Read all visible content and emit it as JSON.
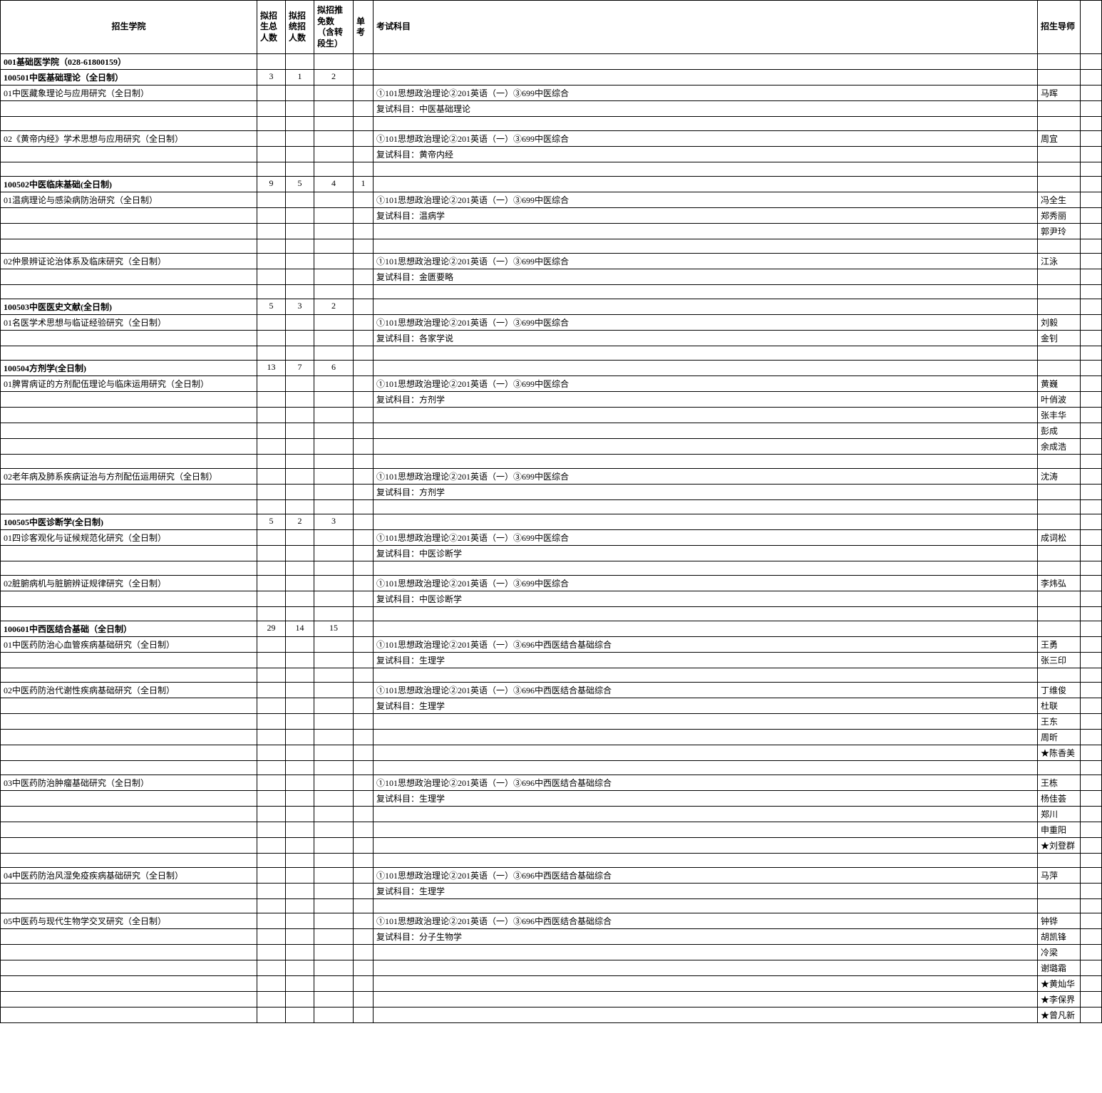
{
  "headers": {
    "school": "招生学院",
    "total": "拟招生总人数",
    "tongzhao": "拟招统招人数",
    "tuimian": "拟招推免数（含转段生）",
    "dankao": "单考",
    "subject": "考试科目",
    "teacher": "招生导师"
  },
  "rows": [
    {
      "c0": "001基础医学院（028-61800159）",
      "bold": true
    },
    {
      "c0": "100501中医基础理论（全日制）",
      "c1": "3",
      "c2": "1",
      "c3": "2",
      "bold": true
    },
    {
      "c0": "01中医藏象理论与应用研究（全日制）",
      "c5": "①101思想政治理论②201英语（一）③699中医综合",
      "c6": "马晖"
    },
    {
      "c5": "复试科目：中医基础理论"
    },
    {},
    {
      "c0": "02《黄帝内经》学术思想与应用研究（全日制）",
      "c5": "①101思想政治理论②201英语（一）③699中医综合",
      "c6": "周宜"
    },
    {
      "c5": "复试科目：黄帝内经"
    },
    {},
    {
      "c0": "100502中医临床基础(全日制)",
      "c1": "9",
      "c2": "5",
      "c3": "4",
      "c4": "1",
      "bold": true
    },
    {
      "c0": "01温病理论与感染病防治研究（全日制）",
      "c5": "①101思想政治理论②201英语（一）③699中医综合",
      "c6": "冯全生"
    },
    {
      "c5": "复试科目：温病学",
      "c6": "郑秀丽"
    },
    {
      "c6": "郭尹玲"
    },
    {},
    {
      "c0": "02仲景辨证论治体系及临床研究（全日制）",
      "c5": "①101思想政治理论②201英语（一）③699中医综合",
      "c6": "江泳"
    },
    {
      "c5": "复试科目：金匮要略"
    },
    {},
    {
      "c0": "100503中医医史文献(全日制)",
      "c1": "5",
      "c2": "3",
      "c3": "2",
      "bold": true
    },
    {
      "c0": "01名医学术思想与临证经验研究（全日制）",
      "c5": "①101思想政治理论②201英语（一）③699中医综合",
      "c6": "刘毅"
    },
    {
      "c5": "复试科目：各家学说",
      "c6": "金钊"
    },
    {},
    {
      "c0": "100504方剂学(全日制)",
      "c1": "13",
      "c2": "7",
      "c3": "6",
      "bold": true
    },
    {
      "c0": "01脾胃病证的方剂配伍理论与临床运用研究（全日制）",
      "c5": "①101思想政治理论②201英语（一）③699中医综合",
      "c6": "黄巍"
    },
    {
      "c5": "复试科目：方剂学",
      "c6": "叶俏波"
    },
    {
      "c6": "张丰华"
    },
    {
      "c6": "彭成"
    },
    {
      "c6": "余成浩"
    },
    {},
    {
      "c0": "02老年病及肺系疾病证治与方剂配伍运用研究（全日制）",
      "c5": "①101思想政治理论②201英语（一）③699中医综合",
      "c6": "沈涛"
    },
    {
      "c5": "复试科目：方剂学"
    },
    {},
    {
      "c0": "100505中医诊断学(全日制)",
      "c1": "5",
      "c2": "2",
      "c3": "3",
      "bold": true
    },
    {
      "c0": "01四诊客观化与证候规范化研究（全日制）",
      "c5": "①101思想政治理论②201英语（一）③699中医综合",
      "c6": "成词松"
    },
    {
      "c5": "复试科目：中医诊断学"
    },
    {},
    {
      "c0": "02脏腑病机与脏腑辨证规律研究（全日制）",
      "c5": "①101思想政治理论②201英语（一）③699中医综合",
      "c6": "李炜弘"
    },
    {
      "c5": "复试科目：中医诊断学"
    },
    {},
    {
      "c0": "100601中西医结合基础（全日制）",
      "c1": "29",
      "c2": "14",
      "c3": "15",
      "bold": true
    },
    {
      "c0": "01中医药防治心血管疾病基础研究（全日制）",
      "c5": "①101思想政治理论②201英语（一）③696中西医结合基础综合",
      "c6": "王勇"
    },
    {
      "c5": "复试科目：生理学",
      "c6": "张三印"
    },
    {},
    {
      "c0": "02中医药防治代谢性疾病基础研究（全日制）",
      "c5": "①101思想政治理论②201英语（一）③696中西医结合基础综合",
      "c6": "丁维俊"
    },
    {
      "c5": "复试科目：生理学",
      "c6": "杜联"
    },
    {
      "c6": "王东"
    },
    {
      "c6": "周昕"
    },
    {
      "c6": "★陈香美"
    },
    {},
    {
      "c0": "03中医药防治肿瘤基础研究（全日制）",
      "c5": "①101思想政治理论②201英语（一）③696中西医结合基础综合",
      "c6": "王栋"
    },
    {
      "c5": "复试科目：生理学",
      "c6": "杨佳荟"
    },
    {
      "c6": "郑川"
    },
    {
      "c6": "申重阳"
    },
    {
      "c6": "★刘登群"
    },
    {},
    {
      "c0": "04中医药防治风湿免疫疾病基础研究（全日制）",
      "c5": "①101思想政治理论②201英语（一）③696中西医结合基础综合",
      "c6": "马萍"
    },
    {
      "c5": "复试科目：生理学"
    },
    {},
    {
      "c0": "05中医药与现代生物学交叉研究（全日制）",
      "c5": "①101思想政治理论②201英语（一）③696中西医结合基础综合",
      "c6": "钟铧"
    },
    {
      "c5": "复试科目：分子生物学",
      "c6": "胡凯锋"
    },
    {
      "c6": "冷梁"
    },
    {
      "c6": "谢璐霜"
    },
    {
      "c6": "★黄灿华"
    },
    {
      "c6": "★李保界"
    },
    {
      "c6": "★曾凡新"
    }
  ]
}
